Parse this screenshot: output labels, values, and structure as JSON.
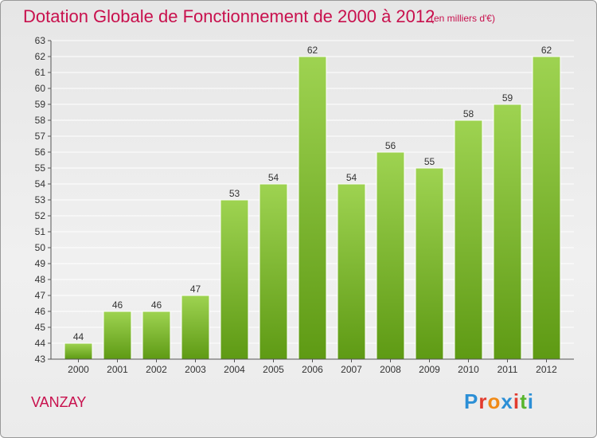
{
  "header": {
    "title": "Dotation Globale de Fonctionnement de 2000 à 2012",
    "subtitle": "(en milliers d'€)"
  },
  "footer": {
    "commune": "VANZAY",
    "logo_text": "Proxiti",
    "logo_colors": [
      "#2c8fd6",
      "#e23b2e",
      "#f08a17",
      "#2c8fd6",
      "#e23b2e",
      "#58b52c",
      "#2c8fd6"
    ]
  },
  "colors": {
    "bar_top": "#9ed351",
    "bar_bottom": "#5e9a14",
    "grid": "#ffffff",
    "text": "#333333",
    "accent": "#c8104d"
  },
  "chart_data": {
    "type": "bar",
    "title": "Dotation Globale de Fonctionnement de 2000 à 2012",
    "subtitle": "(en milliers d'€)",
    "categories": [
      "2000",
      "2001",
      "2002",
      "2003",
      "2004",
      "2005",
      "2006",
      "2007",
      "2008",
      "2009",
      "2010",
      "2011",
      "2012"
    ],
    "values": [
      44,
      46,
      46,
      47,
      53,
      54,
      62,
      54,
      56,
      55,
      58,
      59,
      62
    ],
    "ylim": [
      43,
      63
    ],
    "yticks": [
      43,
      44,
      45,
      46,
      47,
      48,
      49,
      50,
      51,
      52,
      53,
      54,
      55,
      56,
      57,
      58,
      59,
      60,
      61,
      62,
      63
    ],
    "grid": true,
    "data_labels": true
  }
}
